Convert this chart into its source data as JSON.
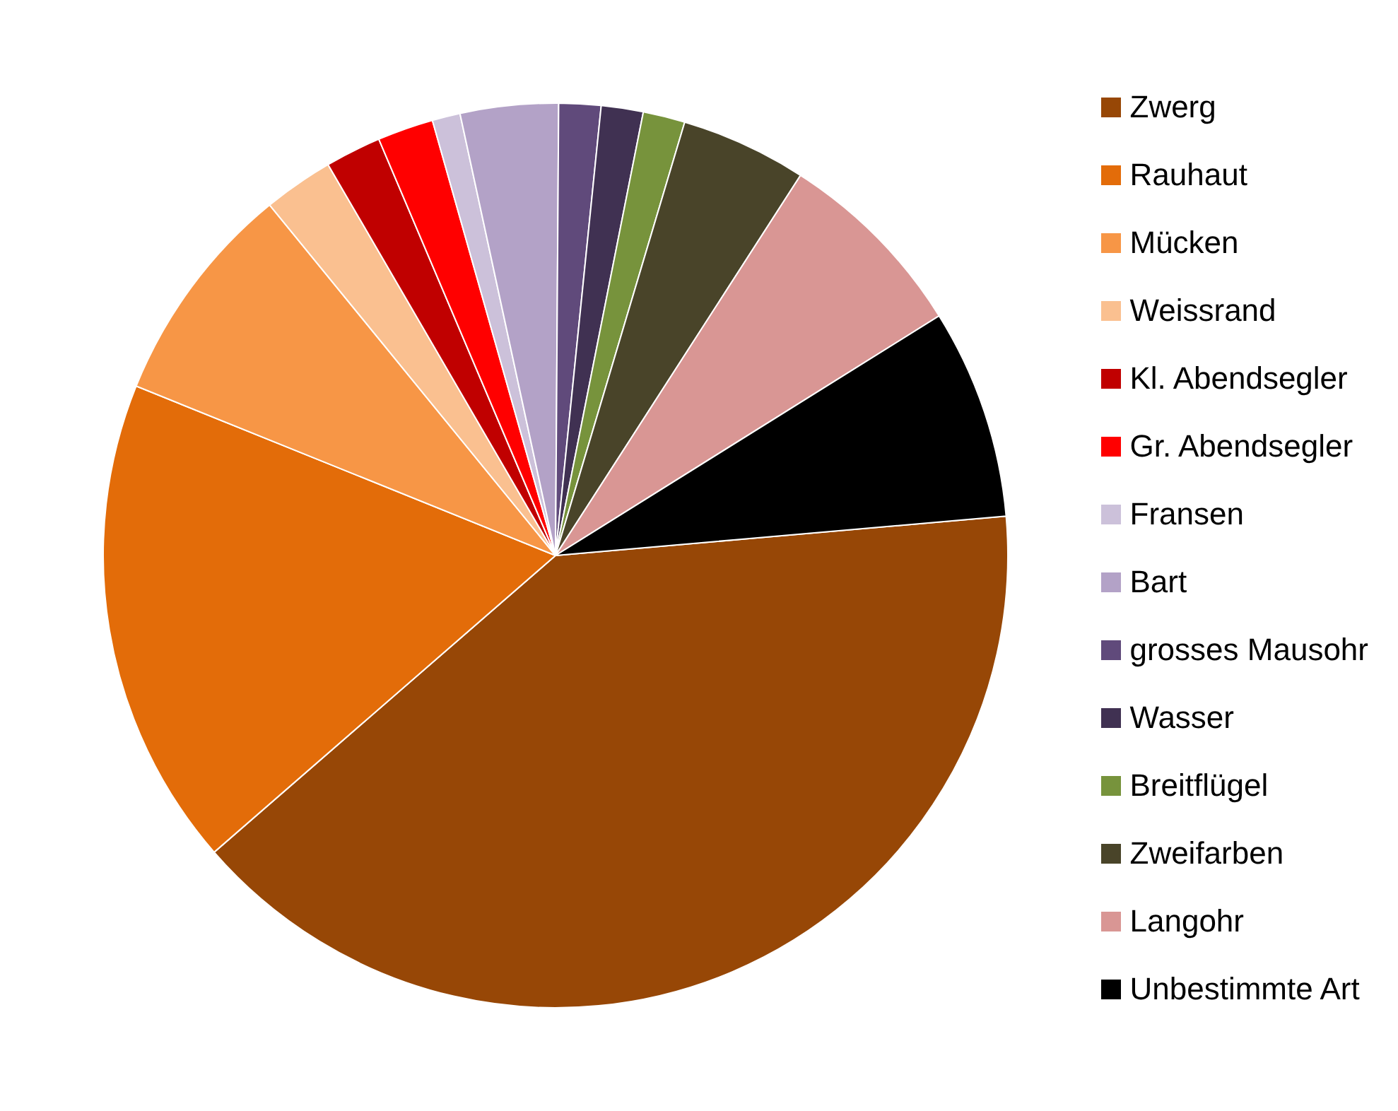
{
  "chart_data": {
    "type": "pie",
    "categories": [
      "Zwerg",
      "Rauhaut",
      "Mücken",
      "Weissrand",
      "Kl. Abendsegler",
      "Gr. Abendsegler",
      "Fransen",
      "Bart",
      "grosses Mausohr",
      "Wasser",
      "Breitflügel",
      "Zweifarben",
      "Langohr",
      "Unbestimmte Art"
    ],
    "values": [
      40,
      17.5,
      8,
      2.5,
      2,
      2,
      1,
      3.5,
      1.5,
      1.5,
      1.5,
      4.5,
      7,
      7.5
    ],
    "colors": [
      "#974706",
      "#e36c09",
      "#f79646",
      "#fac090",
      "#c00000",
      "#ff0000",
      "#ccc1da",
      "#b3a2c7",
      "#604a7b",
      "#403152",
      "#77933c",
      "#494429",
      "#d99694",
      "#000000"
    ],
    "legend": "right"
  }
}
